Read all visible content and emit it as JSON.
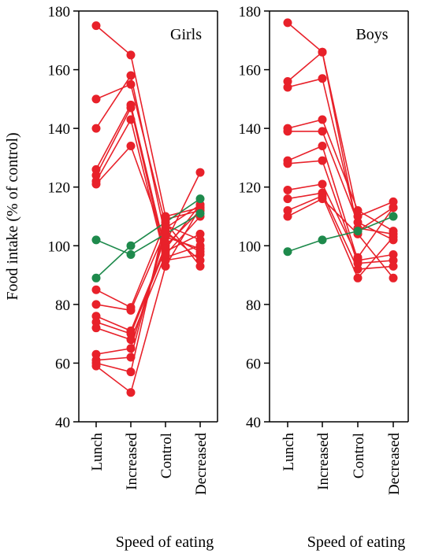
{
  "chart_data": [
    {
      "type": "line",
      "title": "Girls",
      "xlabel": "Speed of eating",
      "ylabel": "Food intake (% of control)",
      "categories": [
        "Lunch",
        "Increased",
        "Control",
        "Decreased"
      ],
      "ylim": [
        40,
        180
      ],
      "yticks": [
        40,
        60,
        80,
        100,
        120,
        140,
        160,
        180
      ],
      "grid": false,
      "series": [
        {
          "color": "#e8212a",
          "values": [
            175,
            165,
            110,
            113
          ]
        },
        {
          "color": "#e8212a",
          "values": [
            150,
            155,
            107,
            102
          ]
        },
        {
          "color": "#e8212a",
          "values": [
            140,
            158,
            103,
            99
          ]
        },
        {
          "color": "#e8212a",
          "values": [
            126,
            148,
            98,
            104
          ]
        },
        {
          "color": "#e8212a",
          "values": [
            124,
            147,
            96,
            100
          ]
        },
        {
          "color": "#e8212a",
          "values": [
            122,
            143,
            95,
            97
          ]
        },
        {
          "color": "#e8212a",
          "values": [
            121,
            134,
            101,
            125
          ]
        },
        {
          "color": "#e8212a",
          "values": [
            85,
            79,
            108,
            93
          ]
        },
        {
          "color": "#e8212a",
          "values": [
            80,
            78,
            105,
            95
          ]
        },
        {
          "color": "#e8212a",
          "values": [
            76,
            71,
            100,
            112
          ]
        },
        {
          "color": "#e8212a",
          "values": [
            74,
            70,
            99,
            114
          ]
        },
        {
          "color": "#e8212a",
          "values": [
            72,
            68,
            97,
            110
          ]
        },
        {
          "color": "#e8212a",
          "values": [
            63,
            65,
            104,
            98
          ]
        },
        {
          "color": "#e8212a",
          "values": [
            61,
            62,
            106,
            114
          ]
        },
        {
          "color": "#e8212a",
          "values": [
            60,
            57,
            109,
            112
          ]
        },
        {
          "color": "#e8212a",
          "values": [
            59,
            50,
            93,
            113
          ]
        },
        {
          "color": "#1e8a4c",
          "values": [
            102,
            97,
            null,
            111
          ]
        },
        {
          "color": "#1e8a4c",
          "values": [
            89,
            100,
            null,
            116
          ]
        }
      ]
    },
    {
      "type": "line",
      "title": "Boys",
      "xlabel": "Speed of eating",
      "ylabel": "",
      "categories": [
        "Lunch",
        "Increased",
        "Control",
        "Decreased"
      ],
      "ylim": [
        40,
        180
      ],
      "yticks": [
        40,
        60,
        80,
        100,
        120,
        140,
        160,
        180
      ],
      "grid": false,
      "series": [
        {
          "color": "#e8212a",
          "values": [
            176,
            166,
            110,
            115
          ]
        },
        {
          "color": "#e8212a",
          "values": [
            156,
            166,
            105,
            113
          ]
        },
        {
          "color": "#e8212a",
          "values": [
            154,
            157,
            106,
            104
          ]
        },
        {
          "color": "#e8212a",
          "values": [
            140,
            143,
            112,
            105
          ]
        },
        {
          "color": "#e8212a",
          "values": [
            139,
            139,
            108,
            102
          ]
        },
        {
          "color": "#e8212a",
          "values": [
            129,
            134,
            95,
            97
          ]
        },
        {
          "color": "#e8212a",
          "values": [
            128,
            129,
            94,
            95
          ]
        },
        {
          "color": "#e8212a",
          "values": [
            119,
            121,
            96,
            113
          ]
        },
        {
          "color": "#e8212a",
          "values": [
            116,
            118,
            92,
            93
          ]
        },
        {
          "color": "#e8212a",
          "values": [
            112,
            117,
            89,
            103
          ]
        },
        {
          "color": "#e8212a",
          "values": [
            110,
            116,
            104,
            89
          ]
        },
        {
          "color": "#1e8a4c",
          "values": [
            98,
            102,
            105,
            110
          ]
        }
      ]
    }
  ]
}
